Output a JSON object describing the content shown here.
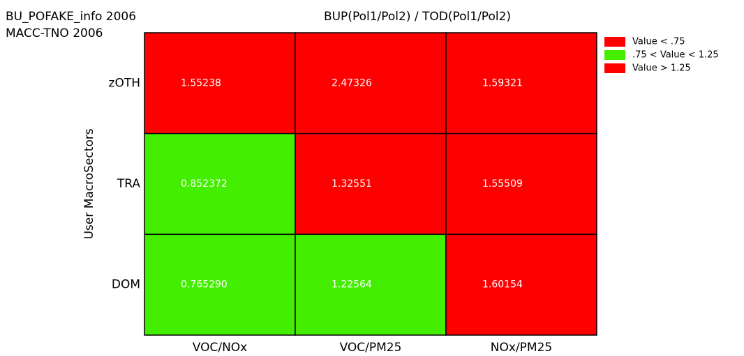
{
  "chart_data": {
    "type": "heatmap",
    "header_lines": [
      "BU_POFAKE_info 2006",
      "MACC-TNO 2006"
    ],
    "title": "BUP(Pol1/Pol2) / TOD(Pol1/Pol2)",
    "y_label": "User MacroSectors",
    "rows": [
      "zOTH",
      "TRA",
      "DOM"
    ],
    "columns": [
      "VOC/NOx",
      "VOC/PM25",
      "NOx/PM25"
    ],
    "values": [
      [
        1.55238,
        2.47326,
        1.59321
      ],
      [
        0.852372,
        1.32551,
        1.55509
      ],
      [
        0.76529,
        1.22564,
        1.60154
      ]
    ],
    "value_labels": [
      [
        "1.55238",
        "2.47326",
        "1.59321"
      ],
      [
        "0.852372",
        "1.32551",
        "1.55509"
      ],
      [
        "0.765290",
        "1.22564",
        "1.60154"
      ]
    ],
    "thresholds": [
      0.75,
      1.25
    ],
    "legend": [
      {
        "label": "Value < .75",
        "color": "#ff0000"
      },
      {
        "label": ".75 < Value < 1.25",
        "color": "#44ee00"
      },
      {
        "label": "Value > 1.25",
        "color": "#ff0000"
      }
    ]
  }
}
